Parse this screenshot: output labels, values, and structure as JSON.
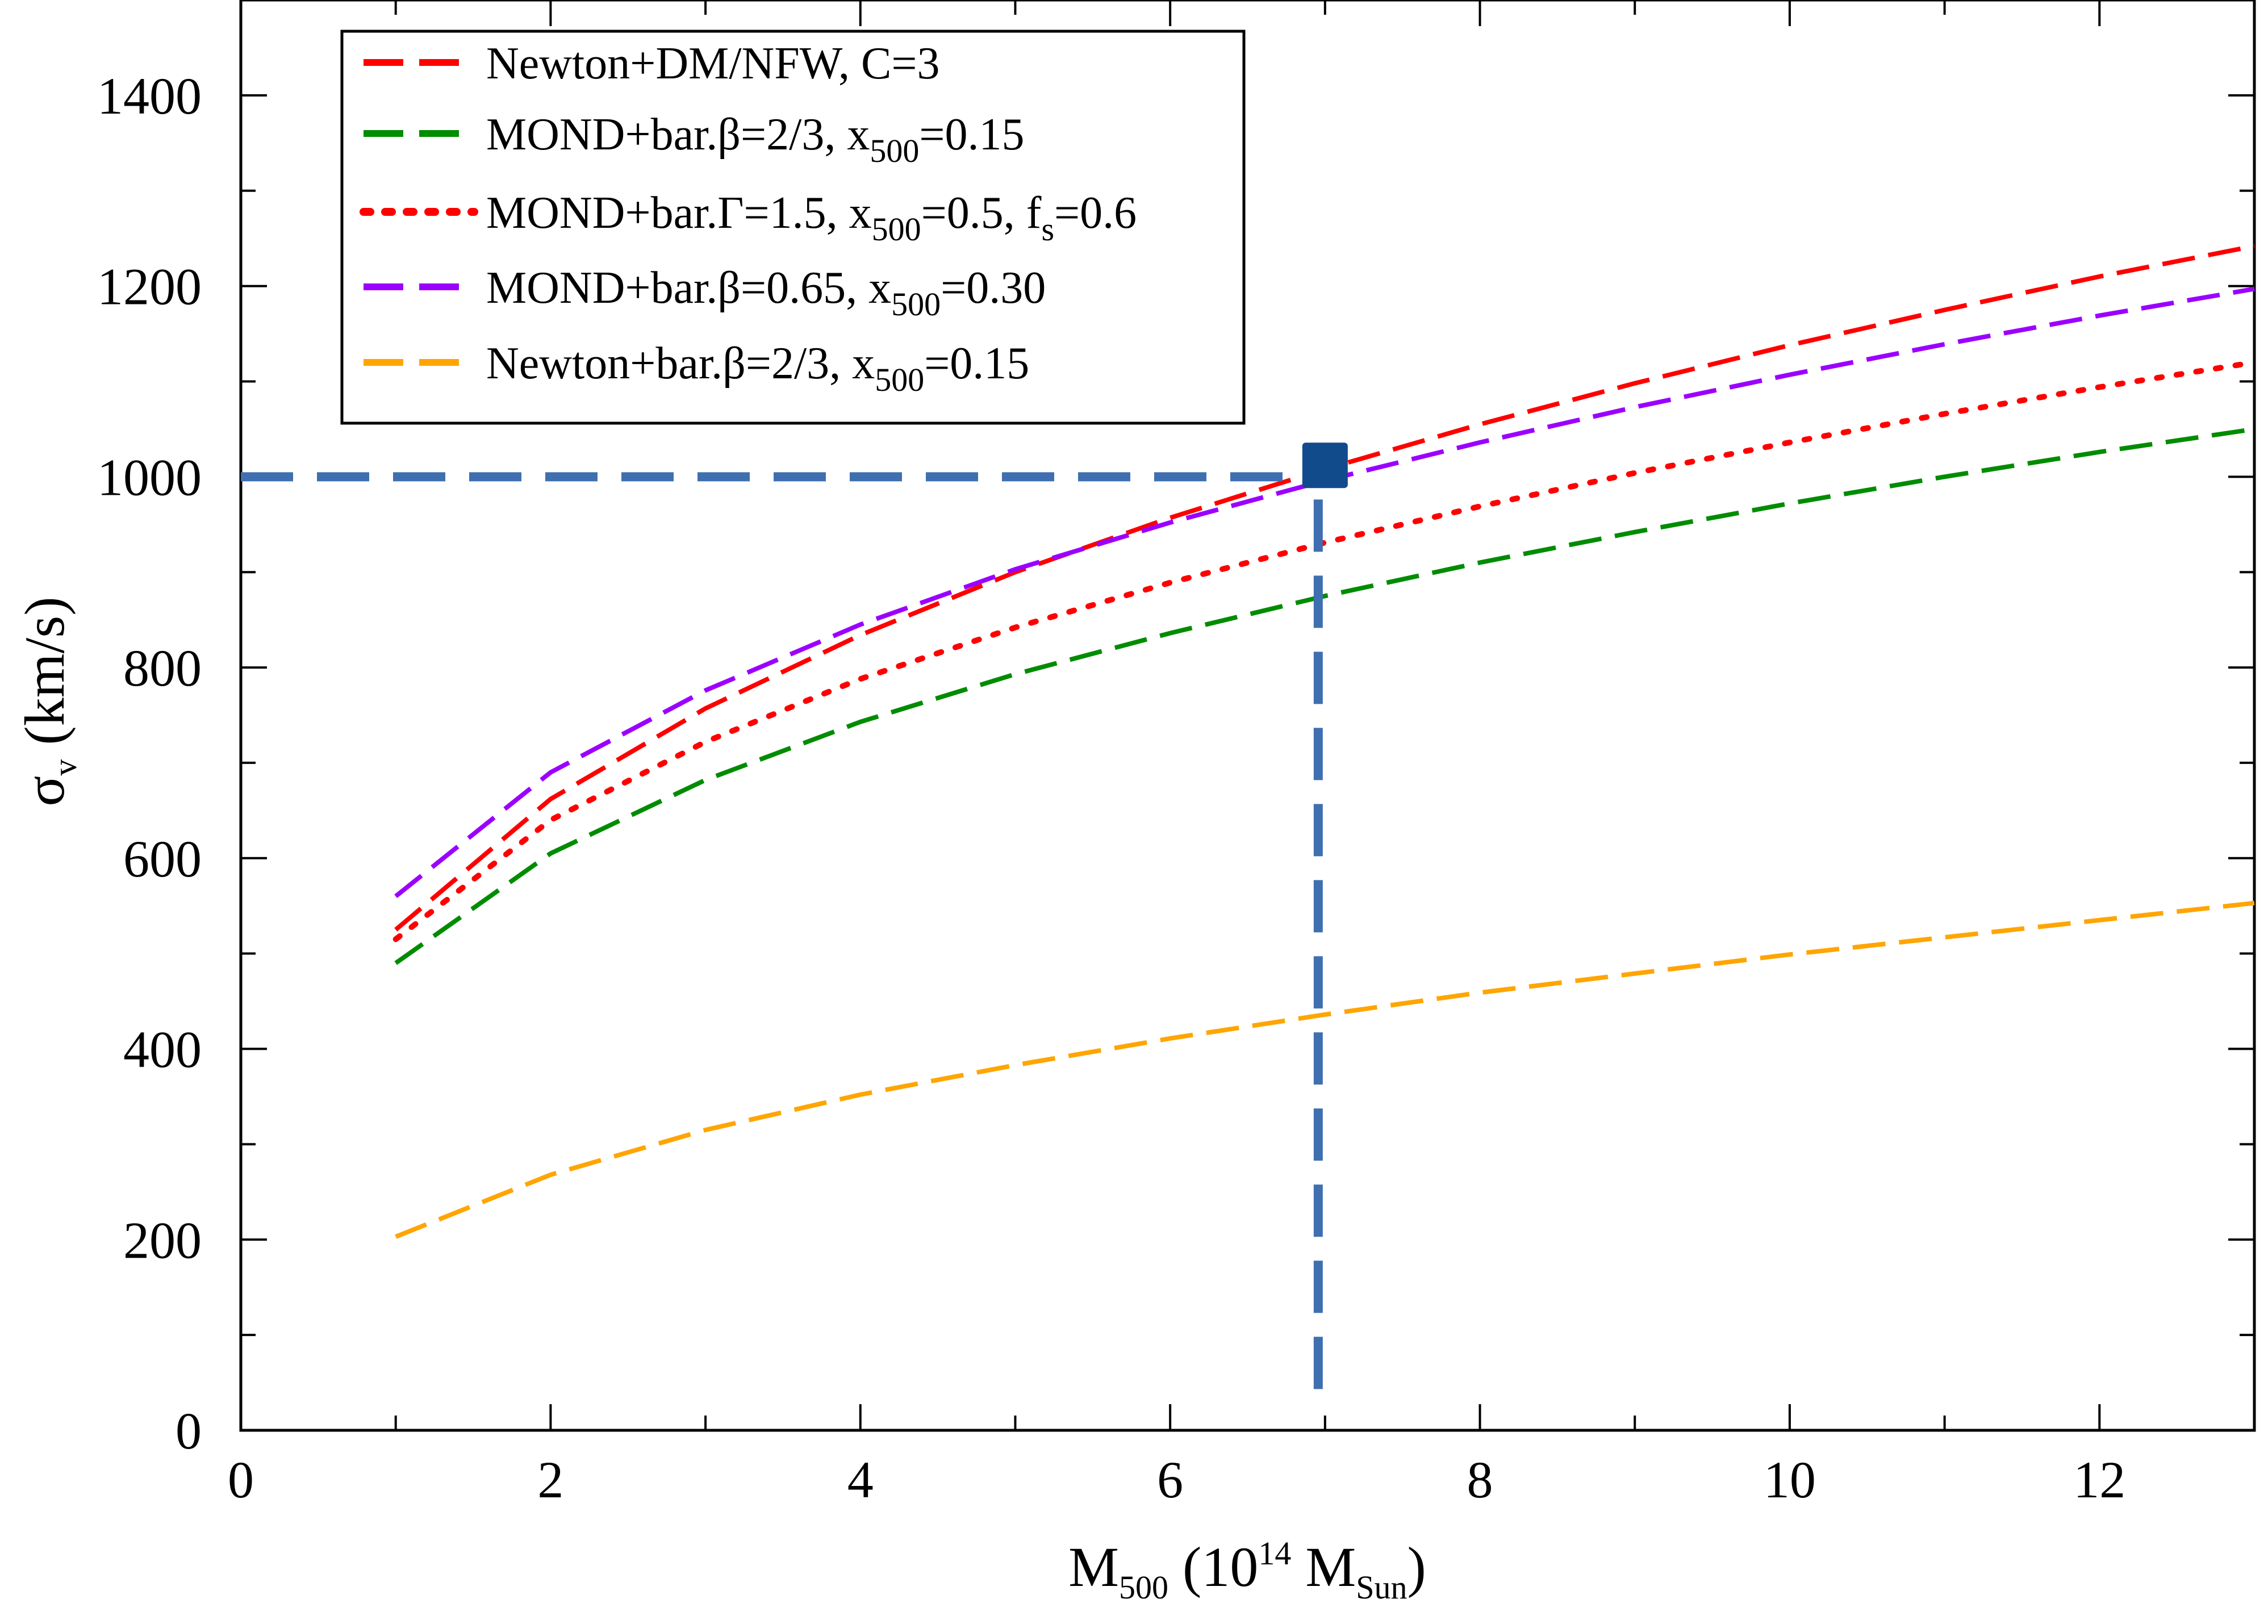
{
  "colors": {
    "newton_dm_nfw": "#ff0000",
    "mond_beta_2_3": "#008c00",
    "mond_gamma_1_5": "#ff0000",
    "mond_beta_0_65": "#9b00ff",
    "newton_bar": "#ffa500",
    "marker": "#114b8c",
    "reference_lines": "#3f6fb0"
  },
  "chart_data": {
    "type": "line",
    "title": "",
    "xlabel": {
      "main": "M",
      "sub": "500",
      "pre": " (10",
      "sup": "14",
      "unit": " M",
      "unit_sub": "Sun",
      "post": ")"
    },
    "ylabel": {
      "main": "σ",
      "sub": "v",
      "post": " (km/s)"
    },
    "xlim": [
      0,
      13
    ],
    "ylim": [
      0,
      1500
    ],
    "xticks": [
      0,
      2,
      4,
      6,
      8,
      10,
      12
    ],
    "yticks": [
      0,
      200,
      400,
      600,
      800,
      1000,
      1200,
      1400
    ],
    "xtick_labels": [
      "0",
      "2",
      "4",
      "6",
      "8",
      "10",
      "12"
    ],
    "ytick_labels": [
      "0",
      "200",
      "400",
      "600",
      "800",
      "1000",
      "1200",
      "1400"
    ],
    "x_minor_step": 1,
    "y_minor_step": 100,
    "grid": false,
    "legend_position": "top-left",
    "x": [
      1,
      2,
      3,
      4,
      5,
      6,
      7,
      8,
      9,
      10,
      11,
      12,
      13
    ],
    "series": [
      {
        "key": "newton_dm_nfw",
        "legend": {
          "parts": [
            {
              "t": "Newton+DM/NFW, C=3"
            }
          ]
        },
        "style": "dash",
        "values": [
          525,
          662,
          757,
          834,
          900,
          957,
          1008,
          1055,
          1098,
          1138,
          1175,
          1210,
          1242
        ]
      },
      {
        "key": "mond_beta_2_3",
        "legend": {
          "parts": [
            {
              "t": "MOND+bar.β=2/3, x"
            },
            {
              "s": "500"
            },
            {
              "t": "=0.15"
            }
          ]
        },
        "style": "dash",
        "values": [
          490,
          605,
          682,
          743,
          793,
          836,
          875,
          910,
          942,
          972,
          1000,
          1026,
          1050
        ]
      },
      {
        "key": "mond_gamma_1_5",
        "legend": {
          "parts": [
            {
              "t": "MOND+bar.Γ=1.5, x"
            },
            {
              "s": "500"
            },
            {
              "t": "=0.5, f"
            },
            {
              "s": "s"
            },
            {
              "t": "=0.6"
            }
          ]
        },
        "style": "dot",
        "values": [
          515,
          640,
          722,
          788,
          842,
          889,
          931,
          969,
          1004,
          1036,
          1066,
          1094,
          1120
        ]
      },
      {
        "key": "mond_beta_0_65",
        "legend": {
          "parts": [
            {
              "t": "MOND+bar.β=0.65, x"
            },
            {
              "s": "500"
            },
            {
              "t": "=0.30"
            }
          ]
        },
        "style": "dash",
        "values": [
          560,
          690,
          776,
          845,
          903,
          952,
          996,
          1036,
          1073,
          1107,
          1139,
          1169,
          1197
        ]
      },
      {
        "key": "newton_bar",
        "legend": {
          "parts": [
            {
              "t": "Newton+bar.β=2/3, x"
            },
            {
              "s": "500"
            },
            {
              "t": "=0.15"
            }
          ]
        },
        "style": "dash",
        "values": [
          203,
          268,
          315,
          352,
          383,
          411,
          436,
          459,
          479,
          499,
          517,
          535,
          553
        ]
      }
    ],
    "annotations": {
      "marker": {
        "x": 7,
        "y": 1012
      },
      "horizontal_reference": {
        "y": 1000,
        "from_x": 0,
        "to_x": 7
      },
      "vertical_reference": {
        "x": 7,
        "from_y": 25,
        "to_y": 1000
      }
    }
  }
}
